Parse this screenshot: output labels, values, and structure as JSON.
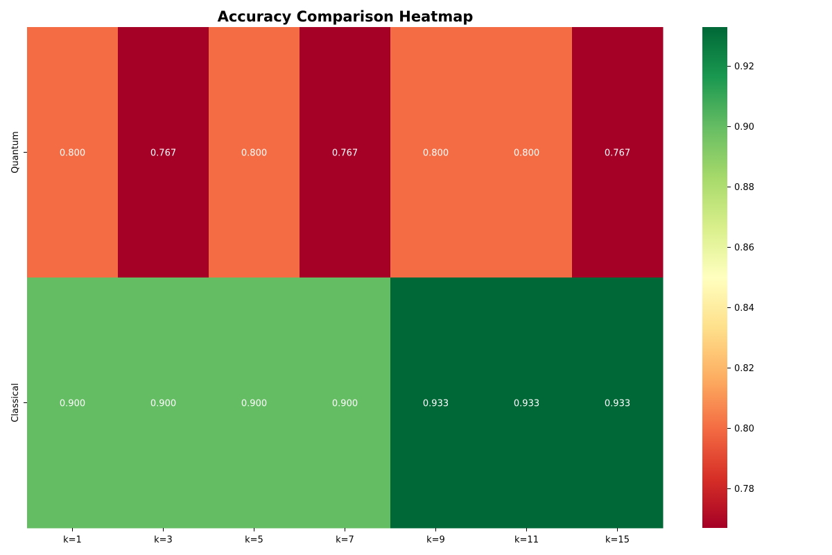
{
  "chart_data": {
    "type": "heatmap",
    "title": "Accuracy Comparison Heatmap",
    "xlabel": "",
    "ylabel": "",
    "x_categories": [
      "k=1",
      "k=3",
      "k=5",
      "k=7",
      "k=9",
      "k=11",
      "k=15"
    ],
    "y_categories": [
      "Quantum",
      "Classical"
    ],
    "values": [
      [
        0.8,
        0.767,
        0.8,
        0.767,
        0.8,
        0.8,
        0.767
      ],
      [
        0.9,
        0.9,
        0.9,
        0.9,
        0.933,
        0.933,
        0.933
      ]
    ],
    "cell_labels": [
      [
        "0.800",
        "0.767",
        "0.800",
        "0.767",
        "0.800",
        "0.800",
        "0.767"
      ],
      [
        "0.900",
        "0.900",
        "0.900",
        "0.900",
        "0.933",
        "0.933",
        "0.933"
      ]
    ],
    "colormap": "RdYlGn",
    "vmin": 0.767,
    "vmax": 0.933,
    "colorbar_ticks": [
      0.78,
      0.8,
      0.82,
      0.84,
      0.86,
      0.88,
      0.9,
      0.92
    ],
    "colorbar_tick_labels": [
      "0.78",
      "0.80",
      "0.82",
      "0.84",
      "0.86",
      "0.88",
      "0.90",
      "0.92"
    ],
    "grid": false,
    "colorbar_placement": "right"
  }
}
